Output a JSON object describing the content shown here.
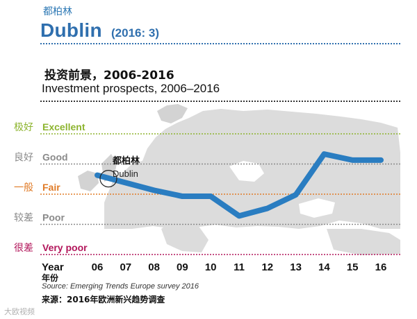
{
  "header": {
    "title_cn": "都柏林",
    "title_en": "Dublin",
    "title_year": "(2016: 3)",
    "subtitle_cn": "投资前景，2006-2016",
    "subtitle_en": "Investment prospects, 2006–2016"
  },
  "source": {
    "en": "Source: Emerging Trends Europe survey 2016",
    "cn": "来源：2016年欧洲新兴趋势调查"
  },
  "watermark": "大欧视频",
  "colors": {
    "title_blue": "#2f6fae",
    "line_blue": "#2a7dc1",
    "excellent": "#8db42f",
    "good": "#8a8a8a",
    "fair": "#e07b27",
    "poor": "#8a8a8a",
    "very_poor": "#b2155a",
    "map_gray": "#dcdcdc"
  },
  "chart_data": {
    "type": "line",
    "title": "Investment prospects, 2006–2016",
    "xlabel": "Year",
    "xlabel_cn": "年份",
    "ylabel": "",
    "x": [
      "06",
      "07",
      "08",
      "09",
      "10",
      "11",
      "12",
      "13",
      "14",
      "15",
      "16"
    ],
    "y_categories": [
      {
        "en": "Very poor",
        "cn": "很差",
        "level": 1,
        "color": "#b2155a"
      },
      {
        "en": "Poor",
        "cn": "较差",
        "level": 2,
        "color": "#8a8a8a"
      },
      {
        "en": "Fair",
        "cn": "一般",
        "level": 3,
        "color": "#e07b27"
      },
      {
        "en": "Good",
        "cn": "良好",
        "level": 4,
        "color": "#8a8a8a"
      },
      {
        "en": "Excellent",
        "cn": "极好",
        "level": 5,
        "color": "#8db42f"
      }
    ],
    "ylim": [
      0.8,
      5.2
    ],
    "series": [
      {
        "name": "Dublin",
        "values": [
          3.4,
          3.15,
          2.9,
          2.7,
          2.7,
          2.05,
          2.3,
          2.75,
          4.1,
          3.9,
          3.9
        ]
      }
    ],
    "annotation": {
      "label_cn": "都柏林",
      "label_en": "Dublin",
      "x_index": 0
    },
    "grid": true,
    "legend": "none"
  }
}
